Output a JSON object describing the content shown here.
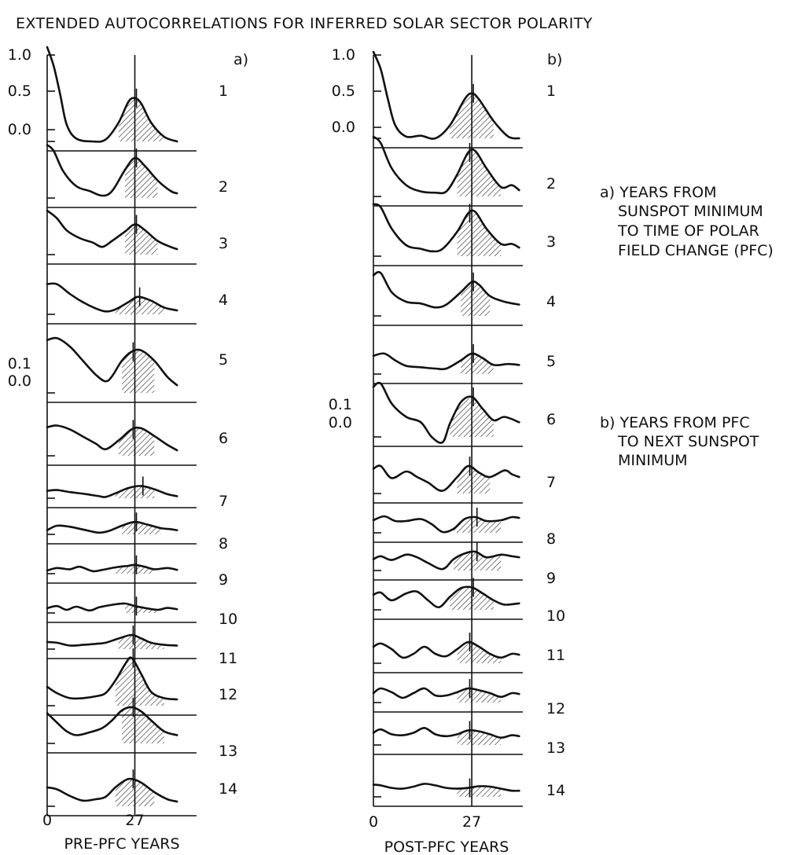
{
  "title": "EXTENDED AUTOCORRELATIONS FOR INFERRED SOLAR SECTOR POLARITY",
  "notes": {
    "a": [
      "a) YEARS FROM",
      "SUNSPOT MINIMUM",
      "TO TIME OF POLAR",
      "FIELD CHANGE (PFC)"
    ],
    "b": [
      "b) YEARS FROM PFC",
      "TO NEXT SUNSPOT",
      "MINIMUM"
    ]
  },
  "chart_data": [
    {
      "type": "line",
      "panel_label": "a)",
      "xlabel": "PRE-PFC YEARS",
      "x_ticks": [
        "0",
        "27"
      ],
      "xlim": [
        0,
        46
      ],
      "y_ticks_top": [
        "1.0",
        "0.5",
        "0.0"
      ],
      "y_ticks_mid": [
        "0.1",
        "0.0"
      ],
      "series": [
        {
          "name": "1",
          "x": [
            0,
            2,
            4,
            6,
            9,
            14,
            18,
            22,
            25,
            27,
            29,
            32,
            36,
            40
          ],
          "y": [
            1.0,
            0.8,
            0.5,
            0.18,
            0.03,
            0.0,
            0.02,
            0.2,
            0.42,
            0.46,
            0.4,
            0.2,
            0.05,
            0.0
          ]
        },
        {
          "name": "2",
          "x": [
            0,
            2,
            5,
            9,
            13,
            17,
            20,
            24,
            27,
            30,
            34,
            38,
            40
          ],
          "y": [
            0.9,
            0.8,
            0.45,
            0.2,
            0.12,
            0.04,
            0.12,
            0.48,
            0.68,
            0.55,
            0.3,
            0.12,
            0.08
          ]
        },
        {
          "name": "3",
          "x": [
            0,
            3,
            6,
            10,
            14,
            17,
            20,
            24,
            27,
            30,
            34,
            38,
            40
          ],
          "y": [
            0.8,
            0.66,
            0.44,
            0.3,
            0.22,
            0.14,
            0.25,
            0.42,
            0.55,
            0.45,
            0.25,
            0.14,
            0.1
          ]
        },
        {
          "name": "4",
          "x": [
            0,
            3,
            7,
            11,
            15,
            18,
            21,
            25,
            28,
            32,
            36,
            40
          ],
          "y": [
            0.62,
            0.62,
            0.42,
            0.25,
            0.12,
            0.06,
            0.1,
            0.25,
            0.36,
            0.28,
            0.14,
            0.08
          ]
        },
        {
          "name": "5",
          "x": [
            0,
            3,
            7,
            11,
            15,
            18,
            20,
            23,
            26,
            29,
            33,
            37,
            40
          ],
          "y": [
            0.82,
            0.85,
            0.72,
            0.5,
            0.28,
            0.18,
            0.26,
            0.5,
            0.64,
            0.66,
            0.5,
            0.25,
            0.12
          ]
        },
        {
          "name": "6",
          "x": [
            0,
            3,
            7,
            11,
            15,
            18,
            22,
            26,
            29,
            33,
            37,
            40
          ],
          "y": [
            0.52,
            0.55,
            0.48,
            0.35,
            0.22,
            0.12,
            0.28,
            0.48,
            0.5,
            0.36,
            0.2,
            0.1
          ]
        },
        {
          "name": "7",
          "x": [
            0,
            3,
            7,
            12,
            16,
            18,
            21,
            25,
            29,
            33,
            37,
            40
          ],
          "y": [
            0.18,
            0.2,
            0.15,
            0.1,
            0.05,
            0.03,
            0.12,
            0.25,
            0.3,
            0.22,
            0.1,
            0.05
          ]
        },
        {
          "name": "8",
          "x": [
            0,
            3,
            7,
            12,
            16,
            19,
            23,
            27,
            31,
            35,
            38,
            40
          ],
          "y": [
            0.12,
            0.25,
            0.22,
            0.12,
            0.05,
            0.1,
            0.25,
            0.36,
            0.28,
            0.18,
            0.15,
            0.12
          ]
        },
        {
          "name": "9",
          "x": [
            0,
            3,
            7,
            10,
            14,
            17,
            21,
            25,
            27,
            30,
            33,
            37,
            40
          ],
          "y": [
            0.1,
            0.18,
            0.14,
            0.22,
            0.08,
            0.12,
            0.2,
            0.25,
            0.28,
            0.22,
            0.14,
            0.18,
            0.12
          ]
        },
        {
          "name": "10",
          "x": [
            0,
            3,
            6,
            9,
            13,
            16,
            20,
            24,
            27,
            30,
            34,
            37,
            40
          ],
          "y": [
            0.15,
            0.22,
            0.1,
            0.2,
            0.08,
            0.18,
            0.26,
            0.3,
            0.22,
            0.16,
            0.1,
            0.16,
            0.12
          ]
        },
        {
          "name": "11",
          "x": [
            0,
            3,
            7,
            11,
            15,
            18,
            22,
            26,
            29,
            32,
            36,
            40
          ],
          "y": [
            0.2,
            0.18,
            0.1,
            0.12,
            0.15,
            0.18,
            0.3,
            0.4,
            0.3,
            0.18,
            0.12,
            0.1
          ]
        },
        {
          "name": "12",
          "x": [
            0,
            3,
            7,
            11,
            15,
            18,
            21,
            24,
            26,
            29,
            32,
            36,
            40
          ],
          "y": [
            0.3,
            0.2,
            0.12,
            0.12,
            0.15,
            0.2,
            0.4,
            0.66,
            0.76,
            0.5,
            0.22,
            0.12,
            0.1
          ]
        },
        {
          "name": "13",
          "x": [
            0,
            3,
            6,
            9,
            13,
            17,
            20,
            23,
            26,
            29,
            32,
            36,
            40
          ],
          "y": [
            0.55,
            0.38,
            0.22,
            0.15,
            0.2,
            0.28,
            0.42,
            0.6,
            0.66,
            0.58,
            0.42,
            0.22,
            0.15
          ]
        },
        {
          "name": "14",
          "x": [
            0,
            3,
            7,
            11,
            15,
            18,
            21,
            24,
            26,
            29,
            33,
            37,
            40
          ],
          "y": [
            0.4,
            0.36,
            0.22,
            0.12,
            0.15,
            0.2,
            0.4,
            0.55,
            0.58,
            0.5,
            0.3,
            0.15,
            0.1
          ]
        }
      ]
    },
    {
      "type": "line",
      "panel_label": "b)",
      "xlabel": "POST-PFC YEARS",
      "x_ticks": [
        "0",
        "27"
      ],
      "xlim": [
        0,
        41
      ],
      "y_ticks_top": [
        "1.0",
        "0.5",
        "0.0"
      ],
      "y_ticks_mid": [
        "0.1",
        "0.0"
      ],
      "series": [
        {
          "name": "1",
          "x": [
            0,
            2,
            4,
            6,
            9,
            13,
            17,
            21,
            25,
            27,
            29,
            33,
            37,
            40
          ],
          "y": [
            1.0,
            0.8,
            0.45,
            0.15,
            0.02,
            0.03,
            0.0,
            0.15,
            0.45,
            0.52,
            0.45,
            0.2,
            0.02,
            0.0
          ]
        },
        {
          "name": "2",
          "x": [
            0,
            2,
            5,
            9,
            13,
            17,
            20,
            23,
            26,
            28,
            31,
            35,
            38,
            40
          ],
          "y": [
            0.95,
            0.85,
            0.45,
            0.18,
            0.08,
            0.06,
            0.08,
            0.35,
            0.7,
            0.72,
            0.45,
            0.15,
            0.18,
            0.1
          ]
        },
        {
          "name": "3",
          "x": [
            0,
            2,
            5,
            9,
            13,
            16,
            19,
            23,
            26,
            28,
            31,
            35,
            38,
            40
          ],
          "y": [
            0.85,
            0.8,
            0.45,
            0.18,
            0.12,
            0.08,
            0.12,
            0.4,
            0.7,
            0.72,
            0.45,
            0.2,
            0.2,
            0.14
          ]
        },
        {
          "name": "4",
          "x": [
            0,
            2,
            5,
            9,
            13,
            17,
            20,
            24,
            27,
            29,
            32,
            36,
            40
          ],
          "y": [
            0.72,
            0.76,
            0.42,
            0.25,
            0.22,
            0.15,
            0.2,
            0.42,
            0.6,
            0.55,
            0.35,
            0.25,
            0.2
          ]
        },
        {
          "name": "5",
          "x": [
            0,
            3,
            6,
            9,
            13,
            17,
            20,
            24,
            27,
            30,
            33,
            37,
            40
          ],
          "y": [
            0.4,
            0.45,
            0.3,
            0.18,
            0.15,
            0.12,
            0.12,
            0.3,
            0.45,
            0.35,
            0.2,
            0.22,
            0.2
          ]
        },
        {
          "name": "6",
          "x": [
            0,
            2,
            5,
            9,
            13,
            16,
            19,
            21,
            24,
            27,
            30,
            33,
            36,
            40
          ],
          "y": [
            0.75,
            0.8,
            0.5,
            0.3,
            0.22,
            0.0,
            -0.08,
            0.2,
            0.52,
            0.6,
            0.42,
            0.25,
            0.3,
            0.22
          ]
        },
        {
          "name": "7",
          "x": [
            0,
            2,
            5,
            9,
            12,
            15,
            19,
            23,
            26,
            29,
            32,
            36,
            38,
            40
          ],
          "y": [
            0.45,
            0.5,
            0.28,
            0.4,
            0.3,
            0.2,
            0.05,
            0.3,
            0.5,
            0.38,
            0.3,
            0.42,
            0.35,
            0.3
          ]
        },
        {
          "name": "8",
          "x": [
            0,
            3,
            6,
            9,
            13,
            16,
            19,
            22,
            25,
            28,
            31,
            35,
            38,
            40
          ],
          "y": [
            0.32,
            0.42,
            0.3,
            0.3,
            0.35,
            0.22,
            0.02,
            0.1,
            0.35,
            0.4,
            0.3,
            0.32,
            0.4,
            0.38
          ]
        },
        {
          "name": "9",
          "x": [
            0,
            2,
            5,
            9,
            12,
            15,
            19,
            22,
            25,
            28,
            31,
            35,
            38,
            40
          ],
          "y": [
            0.3,
            0.38,
            0.28,
            0.42,
            0.35,
            0.2,
            0.04,
            0.3,
            0.45,
            0.5,
            0.35,
            0.42,
            0.38,
            0.35
          ]
        },
        {
          "name": "10",
          "x": [
            0,
            2,
            5,
            9,
            12,
            15,
            18,
            21,
            24,
            27,
            30,
            33,
            36,
            40
          ],
          "y": [
            0.35,
            0.4,
            0.22,
            0.38,
            0.42,
            0.22,
            0.06,
            0.3,
            0.5,
            0.52,
            0.38,
            0.22,
            0.12,
            0.15
          ]
        },
        {
          "name": "11",
          "x": [
            0,
            2,
            5,
            8,
            11,
            14,
            17,
            20,
            23,
            26,
            29,
            32,
            35,
            38,
            40
          ],
          "y": [
            0.35,
            0.42,
            0.3,
            0.12,
            0.2,
            0.35,
            0.2,
            0.15,
            0.3,
            0.45,
            0.35,
            0.2,
            0.12,
            0.2,
            0.18
          ]
        },
        {
          "name": "12",
          "x": [
            0,
            2,
            5,
            8,
            11,
            14,
            17,
            20,
            23,
            26,
            29,
            32,
            35,
            38,
            40
          ],
          "y": [
            0.2,
            0.3,
            0.22,
            0.1,
            0.2,
            0.3,
            0.15,
            0.15,
            0.22,
            0.3,
            0.26,
            0.2,
            0.12,
            0.2,
            0.18
          ]
        },
        {
          "name": "13",
          "x": [
            0,
            2,
            5,
            8,
            11,
            14,
            17,
            20,
            23,
            26,
            29,
            32,
            35,
            38,
            40
          ],
          "y": [
            0.25,
            0.32,
            0.22,
            0.2,
            0.25,
            0.35,
            0.22,
            0.18,
            0.22,
            0.3,
            0.28,
            0.22,
            0.15,
            0.2,
            0.18
          ]
        },
        {
          "name": "14",
          "x": [
            0,
            2,
            5,
            8,
            11,
            14,
            17,
            20,
            23,
            26,
            29,
            32,
            35,
            38,
            40
          ],
          "y": [
            0.3,
            0.28,
            0.22,
            0.2,
            0.25,
            0.32,
            0.28,
            0.22,
            0.2,
            0.22,
            0.26,
            0.25,
            0.2,
            0.15,
            0.15
          ]
        }
      ]
    }
  ]
}
